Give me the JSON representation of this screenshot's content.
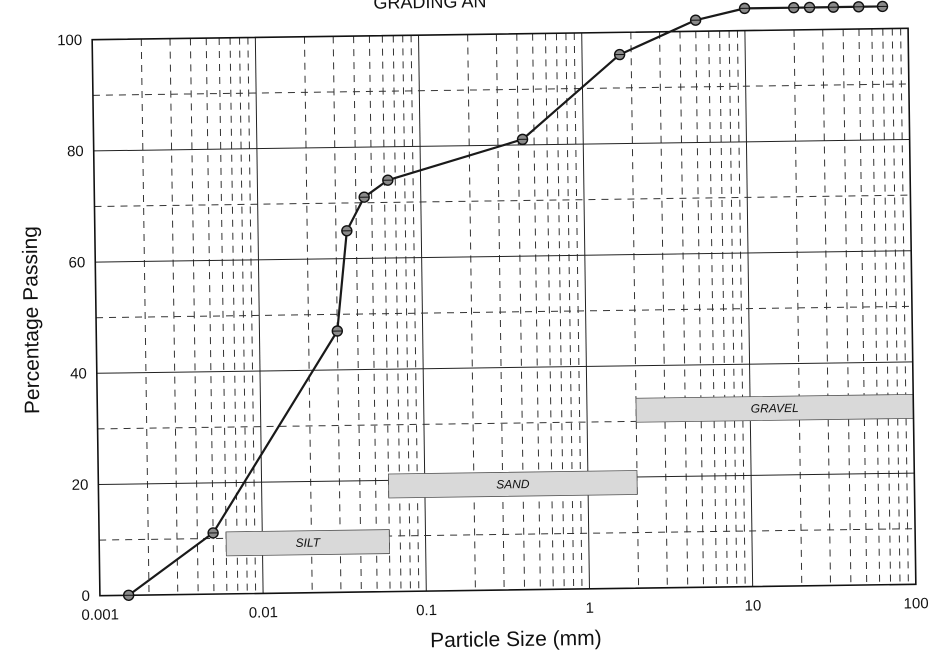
{
  "chart_data": {
    "type": "line",
    "title": "GRADING AN",
    "xlabel": "Particle Size (mm)",
    "ylabel": "Percentage Passing",
    "x_scale": "log",
    "xlim": [
      0.001,
      100
    ],
    "ylim": [
      0,
      100
    ],
    "x_ticks": [
      "0.001",
      "0.01",
      "0.1",
      "1",
      "10",
      "100"
    ],
    "y_ticks": [
      "0",
      "20",
      "40",
      "60",
      "80",
      "100"
    ],
    "grid": true,
    "line_color": "#1a1a1a",
    "marker_color": "#8a8a8a",
    "zone_fill": "#d9d9d9",
    "series": [
      {
        "x": [
          0.0015,
          0.005,
          0.03,
          0.035,
          0.045,
          0.063,
          0.425,
          1.7,
          5,
          10,
          20,
          25,
          35,
          50,
          70
        ],
        "y": [
          0,
          11,
          47,
          65,
          71,
          74,
          81,
          96,
          102,
          104,
          104,
          104,
          104,
          104,
          104
        ]
      }
    ],
    "zones": [
      {
        "label": "SILT",
        "x_from": 0.006,
        "x_to": 0.06,
        "y": 9
      },
      {
        "label": "SAND",
        "x_from": 0.06,
        "x_to": 2,
        "y": 19
      },
      {
        "label": "GRAVEL",
        "x_from": 2,
        "x_to": 100,
        "y": 32
      }
    ]
  }
}
